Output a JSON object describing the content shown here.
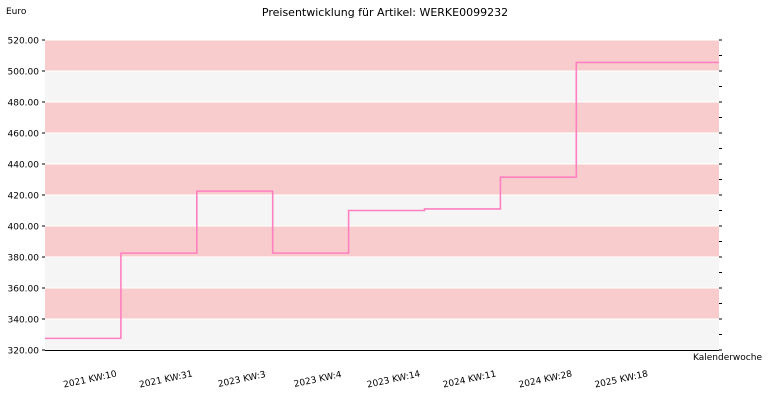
{
  "chart_data": {
    "type": "line",
    "step": true,
    "title": "Preisentwicklung für Artikel: WERKE0099232",
    "xlabel": "Kalenderwoche",
    "ylabel": "Euro",
    "ylim": [
      320,
      520
    ],
    "yticks": [
      "320.00",
      "340.00",
      "360.00",
      "380.00",
      "400.00",
      "420.00",
      "440.00",
      "460.00",
      "480.00",
      "500.00",
      "520.00"
    ],
    "categories": [
      "2021 KW:10",
      "2021 KW:31",
      "2023 KW:3",
      "2023 KW:4",
      "2023 KW:14",
      "2024 KW:11",
      "2024 KW:28",
      "2025 KW:18"
    ],
    "series": [
      {
        "values": [
          327.5,
          382.5,
          422.5,
          382.5,
          410.0,
          411.0,
          431.5,
          505.5
        ]
      }
    ],
    "colors": {
      "line": "#ff80c0",
      "band_dark": "#f8cccc",
      "band_light": "#f5f5f5",
      "grid": "#ffffff"
    },
    "grid": true,
    "legend": "none"
  }
}
